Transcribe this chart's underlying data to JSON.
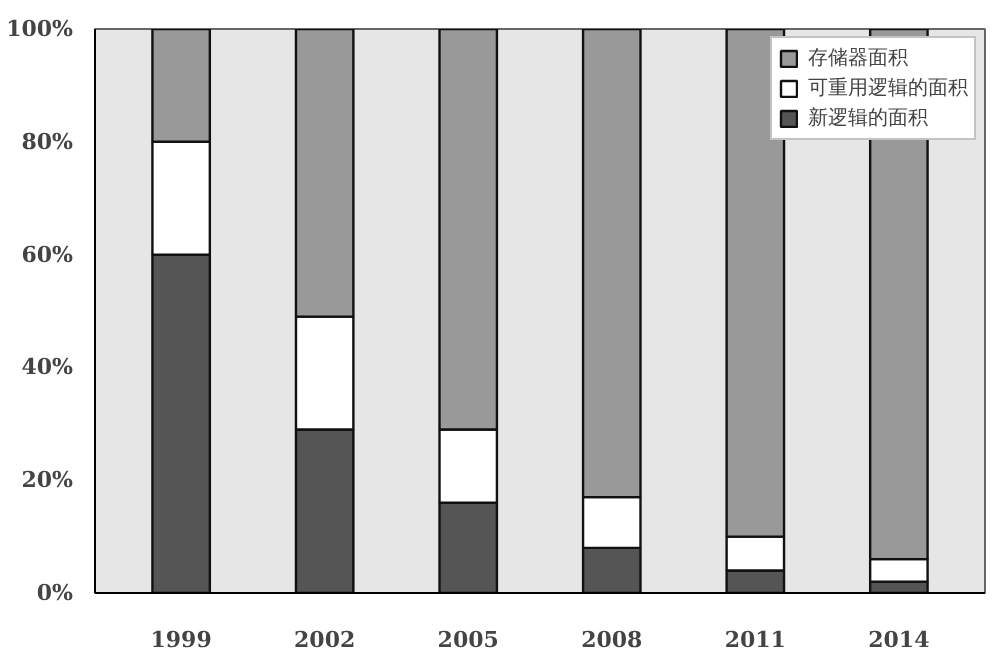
{
  "chart_data": {
    "type": "bar",
    "stacked": true,
    "categories": [
      "1999",
      "2002",
      "2005",
      "2008",
      "2011",
      "2014"
    ],
    "series": [
      {
        "name": "新逻辑的面积",
        "color": "#555555",
        "values": [
          60,
          29,
          16,
          8,
          4,
          2
        ]
      },
      {
        "name": "可重用逻辑的面积",
        "color": "#ffffff",
        "values": [
          20,
          20,
          13,
          9,
          6,
          4
        ]
      },
      {
        "name": "存储器面积",
        "color": "#999999",
        "values": [
          20,
          51,
          71,
          83,
          90,
          94
        ]
      }
    ],
    "ylim": [
      0,
      100
    ],
    "yticks": [
      {
        "value": 0,
        "label": "0%"
      },
      {
        "value": 20,
        "label": "20%"
      },
      {
        "value": 40,
        "label": "40%"
      },
      {
        "value": 60,
        "label": "60%"
      },
      {
        "value": 80,
        "label": "80%"
      },
      {
        "value": 100,
        "label": "100%"
      }
    ],
    "grid": false,
    "legend": "top right"
  }
}
